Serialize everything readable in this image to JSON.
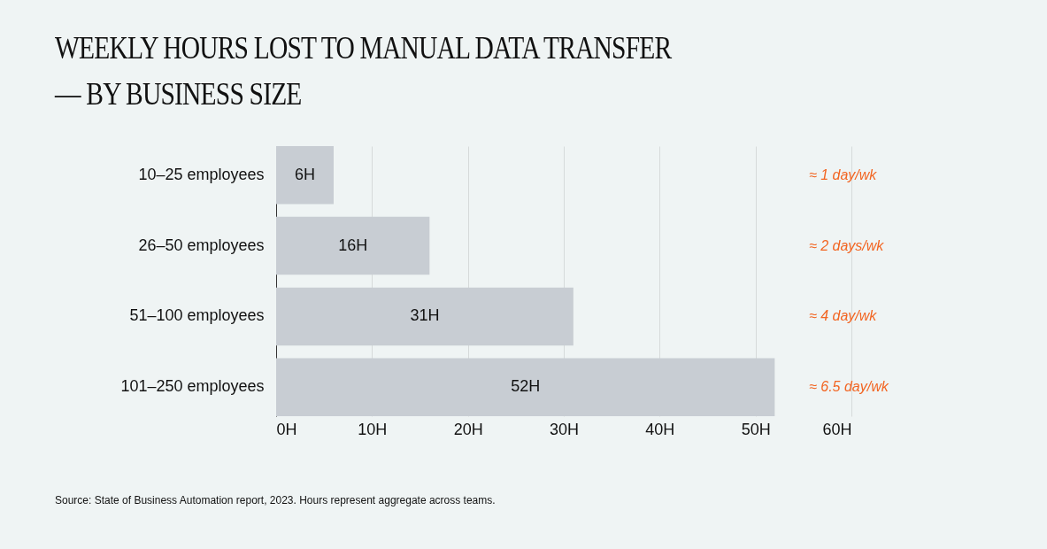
{
  "chart_data": {
    "type": "bar",
    "orientation": "horizontal",
    "title": "WEEKLY HOURS LOST TO MANUAL DATA TRANSFER — BY BUSINESS SIZE",
    "categories": [
      "10–25 employees",
      "26–50 employees",
      "51–100 employees",
      "101–250 employees"
    ],
    "values": [
      6,
      16,
      31,
      52
    ],
    "color": "#c8cdd3",
    "value_labels": [
      "6H",
      "16H",
      "31H",
      "52H"
    ],
    "xlim": [
      0,
      60
    ],
    "xticks": [
      {
        "value": 0,
        "label": "0H"
      },
      {
        "value": 10,
        "label": "10H"
      },
      {
        "value": 20,
        "label": "20H"
      },
      {
        "value": 30,
        "label": "30H"
      },
      {
        "value": 40,
        "label": "40H"
      },
      {
        "value": 50,
        "label": "50H"
      },
      {
        "value": 60,
        "label": "60H"
      }
    ],
    "grid": "x",
    "annotations": [
      "≈ 1 day/wk",
      "≈ 2 days/wk",
      "≈ 4 day/wk",
      "≈ 6.5 day/wk",
      "Source: State of Business Automation report, 2023. Hours represent aggregate across teams."
    ]
  }
}
